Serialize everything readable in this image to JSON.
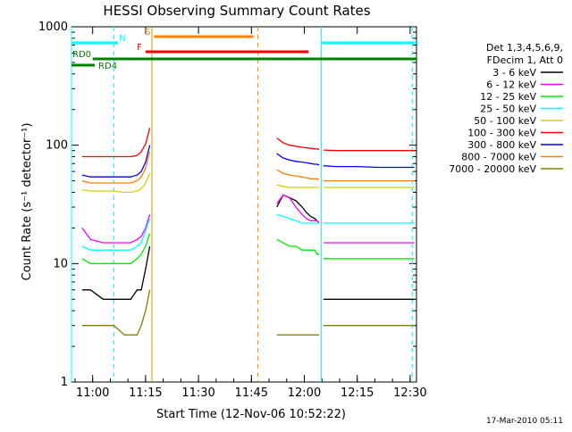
{
  "chart_data": {
    "type": "line",
    "title": "HESSI Observing Summary Count Rates",
    "xlabel": "Start Time (12-Nov-06 10:52:22)",
    "ylabel": "Count Rate (s⁻¹ detector⁻¹)",
    "yscale": "log",
    "xlim_minutes": [
      10.9,
      12.53
    ],
    "xlim_clock": [
      "10:52:22",
      "12:31:40"
    ],
    "ylim": [
      1,
      1000
    ],
    "x_ticks": [
      "11:00",
      "11:15",
      "11:30",
      "11:45",
      "12:00",
      "12:15",
      "12:30"
    ],
    "y_ticks": [
      "1",
      "10",
      "100",
      "1000"
    ],
    "legend_header": [
      "Det 1,3,4,5,6,9,",
      "FDecim 1, Att 0"
    ],
    "legend_position": "right",
    "footer_date": "17-Mar-2010 05:11",
    "gaps": [
      [
        11.28,
        11.86
      ],
      [
        12.07,
        12.08
      ]
    ],
    "series": [
      {
        "name": "3 - 6 keV",
        "color": "#000000",
        "values": [
          6,
          6,
          5,
          5,
          5,
          5,
          6,
          6,
          9,
          14,
          30,
          38,
          36,
          34,
          30,
          27,
          25,
          24,
          23,
          22,
          5,
          5,
          5,
          5,
          5,
          5
        ]
      },
      {
        "name": "6 - 12 keV",
        "color": "#ff00ff",
        "values": [
          20,
          16,
          15,
          15,
          15,
          15,
          16,
          17,
          20,
          26,
          32,
          38,
          36,
          30,
          26,
          24,
          23,
          23,
          23,
          22,
          15,
          15,
          15,
          15,
          15,
          15
        ]
      },
      {
        "name": "12 - 25 keV",
        "color": "#00ee00",
        "values": [
          11,
          10,
          10,
          10,
          10,
          10,
          11,
          12,
          14,
          18,
          16,
          15,
          14,
          14,
          13,
          13,
          13,
          13,
          12,
          12,
          11,
          11,
          11,
          11,
          11,
          11
        ]
      },
      {
        "name": "25 - 50 keV",
        "color": "#00ffff",
        "values": [
          14,
          13,
          13,
          13,
          13,
          13,
          14,
          15,
          19,
          24,
          26,
          25,
          24,
          23,
          22,
          22,
          22,
          22,
          22,
          22,
          22,
          22,
          22,
          22,
          22,
          22
        ]
      },
      {
        "name": "50 - 100 keV",
        "color": "#d8d000",
        "values": [
          42,
          41,
          41,
          41,
          40,
          40,
          41,
          43,
          48,
          58,
          46,
          45,
          44,
          44,
          44,
          44,
          44,
          44,
          44,
          44,
          44,
          44,
          44,
          44,
          44,
          44
        ]
      },
      {
        "name": "100 - 300 keV",
        "color": "#ff0000",
        "values": [
          80,
          80,
          80,
          80,
          80,
          80,
          82,
          88,
          102,
          140,
          115,
          105,
          100,
          98,
          96,
          95,
          94,
          93,
          93,
          92,
          91,
          90,
          90,
          90,
          90,
          90
        ]
      },
      {
        "name": "300 - 800 keV",
        "color": "#0000ff",
        "values": [
          56,
          54,
          54,
          54,
          54,
          54,
          56,
          60,
          72,
          100,
          85,
          78,
          75,
          73,
          72,
          71,
          70,
          69,
          69,
          68,
          67,
          66,
          66,
          65,
          65,
          65
        ]
      },
      {
        "name": "800 - 7000 keV",
        "color": "#ff8000",
        "values": [
          50,
          48,
          48,
          48,
          48,
          48,
          50,
          54,
          64,
          88,
          62,
          58,
          56,
          55,
          54,
          53,
          52,
          52,
          52,
          51,
          50,
          50,
          50,
          50,
          50,
          50
        ]
      },
      {
        "name": "7000 - 20000 keV",
        "color": "#808000",
        "values": [
          3,
          3,
          3,
          3,
          2.5,
          2.5,
          2.5,
          3,
          4,
          6,
          2.5,
          2.5,
          2.5,
          2.5,
          2.5,
          2.5,
          2.5,
          2.5,
          2.5,
          2.5,
          3,
          3,
          3,
          3,
          3,
          3
        ]
      }
    ],
    "x_minutes": [
      10.95,
      10.99,
      11.05,
      11.1,
      11.15,
      11.18,
      11.21,
      11.23,
      11.25,
      11.27,
      11.87,
      11.9,
      11.93,
      11.96,
      11.99,
      12.01,
      12.03,
      12.05,
      12.06,
      12.07,
      12.09,
      12.15,
      12.25,
      12.35,
      12.45,
      12.52
    ],
    "flag_bars": [
      {
        "label": "S",
        "color": "#ff8000",
        "start": 11.29,
        "end": 11.76
      },
      {
        "label": "F",
        "color": "#ff0000",
        "start": 11.25,
        "end": 12.02
      },
      {
        "label": "N",
        "color": "#00ffff",
        "start": 10.9,
        "end": 11.12
      },
      {
        "label": "",
        "color": "#00ffff",
        "start": 12.08,
        "end": 12.53
      },
      {
        "label": "RD0",
        "color": "#008000",
        "start": 11.0,
        "end": 12.53
      },
      {
        "label": "RD4",
        "color": "#008000",
        "start": 10.9,
        "end": 11.01
      }
    ],
    "vlines": [
      {
        "x": 10.9,
        "color": "#00ffff",
        "dashed": false
      },
      {
        "x": 11.1,
        "color": "#00ffff",
        "dashed": true
      },
      {
        "x": 11.28,
        "color": "#c8a000",
        "dashed": false
      },
      {
        "x": 11.78,
        "color": "#ff8000",
        "dashed": true
      },
      {
        "x": 12.08,
        "color": "#00ffff",
        "dashed": false
      },
      {
        "x": 12.51,
        "color": "#00ffff",
        "dashed": true
      }
    ]
  }
}
